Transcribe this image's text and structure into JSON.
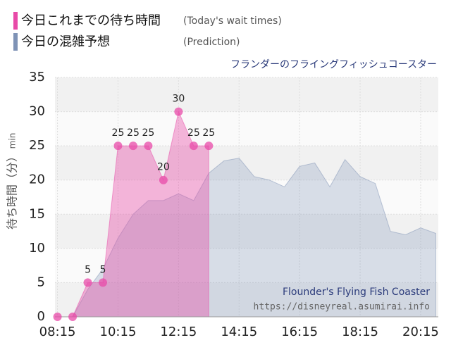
{
  "chart_data": {
    "type": "area",
    "subtitle": "フランダーのフライングフィッシュコースター",
    "y_label": "待ち時間（分）",
    "y_unit": "min",
    "watermark_title": "Flounder's Flying Fish Coaster",
    "watermark_url": "https://disneyreal.asumirai.info",
    "x": [
      "08:15",
      "08:45",
      "09:15",
      "09:45",
      "10:15",
      "10:45",
      "11:15",
      "11:45",
      "12:15",
      "12:45",
      "13:15",
      "13:45",
      "14:15",
      "14:45",
      "15:15",
      "15:45",
      "16:15",
      "16:45",
      "17:15",
      "17:45",
      "18:15",
      "18:45",
      "19:15",
      "19:45",
      "20:15",
      "20:45"
    ],
    "xlim": [
      "08:10",
      "20:50"
    ],
    "xticks": [
      "08:15",
      "10:15",
      "12:15",
      "14:15",
      "16:15",
      "18:15",
      "20:15"
    ],
    "ylim": [
      0,
      35
    ],
    "yticks": [
      0,
      5,
      10,
      15,
      20,
      25,
      30,
      35
    ],
    "grid": true,
    "series": [
      {
        "name": "今日の混雑予想",
        "description": "(Prediction)",
        "color": "#7f93b6",
        "values": [
          null,
          0,
          4,
          7,
          11.5,
          15,
          17,
          17,
          18,
          17,
          21,
          22.8,
          23.2,
          20.5,
          20,
          19,
          22,
          22.5,
          19,
          23,
          20.5,
          19.5,
          12.5,
          12,
          13,
          12.2
        ]
      },
      {
        "name": "今日これまでの待ち時間",
        "description": "(Today's wait times)",
        "color": "#e84aa8",
        "markers": true,
        "labels": true,
        "values": [
          0,
          0,
          5,
          5,
          25,
          25,
          25,
          20,
          30,
          25,
          25,
          null,
          null,
          null,
          null,
          null,
          null,
          null,
          null,
          null,
          null,
          null,
          null,
          null,
          null,
          null
        ]
      }
    ]
  }
}
